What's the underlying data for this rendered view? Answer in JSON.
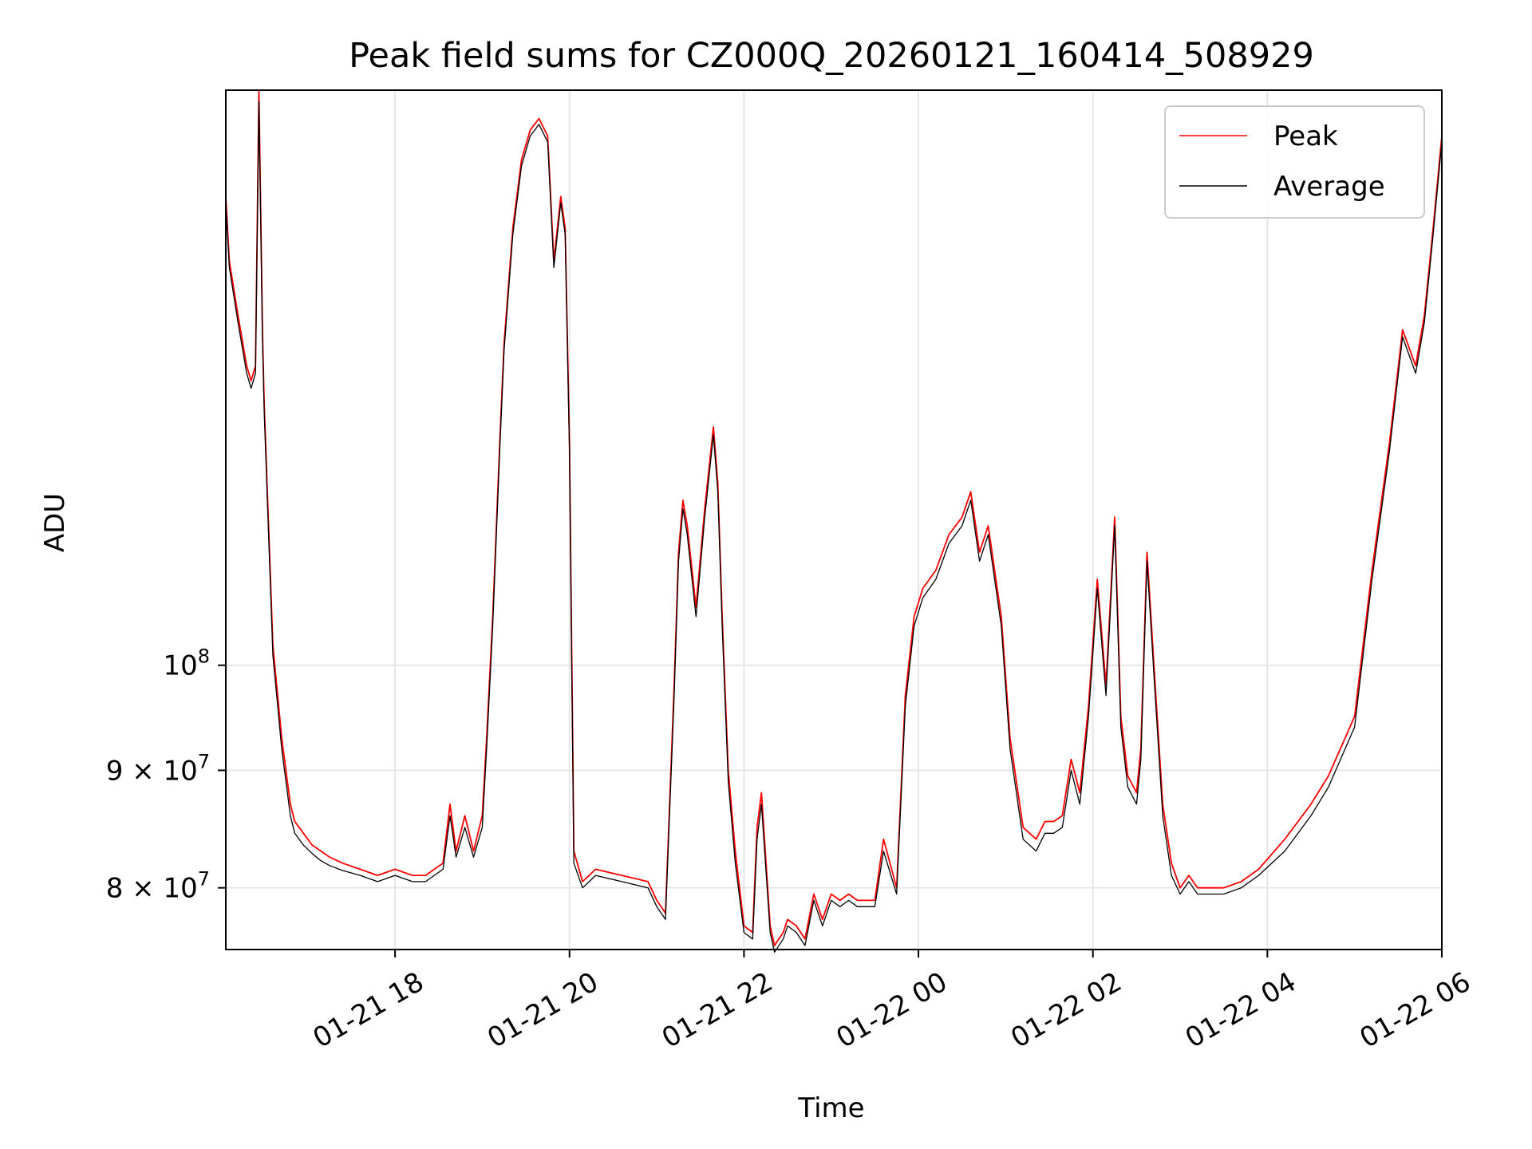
{
  "chart_data": {
    "type": "line",
    "title": "Peak field sums for CZ000Q_20260121_160414_508929",
    "xlabel": "Time",
    "ylabel": "ADU",
    "yscale": "log",
    "xlim": [
      -1.94,
      12.0
    ],
    "ylim": [
      75200000.0,
      178000000.0
    ],
    "grid": true,
    "legend_position": "top-right",
    "x_unit": "hours relative to 2026-01-21 18:00",
    "x_ticks": [
      {
        "value": 0,
        "label": "01-21 18"
      },
      {
        "value": 2,
        "label": "01-21 20"
      },
      {
        "value": 4,
        "label": "01-21 22"
      },
      {
        "value": 6,
        "label": "01-22 00"
      },
      {
        "value": 8,
        "label": "01-22 02"
      },
      {
        "value": 10,
        "label": "01-22 04"
      },
      {
        "value": 12,
        "label": "01-22 06"
      }
    ],
    "y_ticks": [
      {
        "value": 80000000.0,
        "mantissa": "8",
        "base": "10",
        "exp": "7"
      },
      {
        "value": 90000000.0,
        "mantissa": "9",
        "base": "10",
        "exp": "7"
      },
      {
        "value": 100000000.0,
        "mantissa": "",
        "base": "10",
        "exp": "8"
      }
    ],
    "series": [
      {
        "name": "Peak",
        "color": "#ff0000",
        "x": [
          -1.94,
          -1.9,
          -1.8,
          -1.7,
          -1.65,
          -1.6,
          -1.56,
          -1.52,
          -1.5,
          -1.45,
          -1.4,
          -1.3,
          -1.2,
          -1.15,
          -1.05,
          -0.95,
          -0.85,
          -0.75,
          -0.6,
          -0.4,
          -0.2,
          0.0,
          0.2,
          0.35,
          0.55,
          0.63,
          0.7,
          0.8,
          0.9,
          1.0,
          1.05,
          1.12,
          1.2,
          1.25,
          1.35,
          1.45,
          1.55,
          1.65,
          1.75,
          1.82,
          1.9,
          1.95,
          2.0,
          2.05,
          2.15,
          2.3,
          2.6,
          2.9,
          3.0,
          3.1,
          3.2,
          3.25,
          3.3,
          3.35,
          3.45,
          3.55,
          3.65,
          3.7,
          3.75,
          3.82,
          3.9,
          4.0,
          4.1,
          4.15,
          4.2,
          4.3,
          4.35,
          4.45,
          4.5,
          4.6,
          4.7,
          4.8,
          4.9,
          5.0,
          5.1,
          5.2,
          5.3,
          5.5,
          5.6,
          5.75,
          5.85,
          5.95,
          6.05,
          6.2,
          6.35,
          6.5,
          6.6,
          6.7,
          6.8,
          6.95,
          7.05,
          7.2,
          7.35,
          7.45,
          7.55,
          7.65,
          7.75,
          7.85,
          7.95,
          8.05,
          8.15,
          8.25,
          8.32,
          8.4,
          8.5,
          8.55,
          8.62,
          8.7,
          8.8,
          8.9,
          9.0,
          9.1,
          9.2,
          9.35,
          9.5,
          9.7,
          9.9,
          10.2,
          10.5,
          10.7,
          11.0,
          11.2,
          11.4,
          11.55,
          11.7,
          11.8,
          11.9,
          12.0
        ],
        "values": [
          160000000.0,
          150000000.0,
          142000000.0,
          135000000.0,
          133000000.0,
          135000000.0,
          178000000.0,
          140000000.0,
          130000000.0,
          115000000.0,
          102000000.0,
          93000000.0,
          87000000.0,
          85500000.0,
          84500000.0,
          83500000.0,
          83000000.0,
          82500000.0,
          82000000.0,
          81500000.0,
          81000000.0,
          81500000.0,
          81000000.0,
          81000000.0,
          82000000.0,
          87000000.0,
          83000000.0,
          86000000.0,
          83000000.0,
          86000000.0,
          93000000.0,
          105000000.0,
          125000000.0,
          138000000.0,
          155000000.0,
          166000000.0,
          171000000.0,
          173000000.0,
          170000000.0,
          150000000.0,
          160000000.0,
          155000000.0,
          125000000.0,
          83000000.0,
          80500000.0,
          81500000.0,
          81000000.0,
          80500000.0,
          79000000.0,
          78000000.0,
          98000000.0,
          112000000.0,
          118000000.0,
          115000000.0,
          106000000.0,
          117000000.0,
          127000000.0,
          120000000.0,
          105000000.0,
          90000000.0,
          83000000.0,
          77000000.0,
          76500000.0,
          85000000.0,
          88000000.0,
          77000000.0,
          75500000.0,
          76500000.0,
          77500000.0,
          77000000.0,
          76000000.0,
          79500000.0,
          77500000.0,
          79500000.0,
          79000000.0,
          79500000.0,
          79000000.0,
          79000000.0,
          84000000.0,
          80000000.0,
          97000000.0,
          105000000.0,
          108000000.0,
          110000000.0,
          114000000.0,
          116000000.0,
          119000000.0,
          112000000.0,
          115000000.0,
          105000000.0,
          93000000.0,
          85000000.0,
          84000000.0,
          85500000.0,
          85500000.0,
          86000000.0,
          91000000.0,
          88000000.0,
          96000000.0,
          109000000.0,
          98000000.0,
          116000000.0,
          95000000.0,
          89500000.0,
          88000000.0,
          92000000.0,
          112000000.0,
          100000000.0,
          87000000.0,
          82000000.0,
          80000000.0,
          81000000.0,
          80000000.0,
          80000000.0,
          80000000.0,
          80500000.0,
          81500000.0,
          84000000.0,
          87000000.0,
          89500000.0,
          95000000.0,
          110000000.0,
          125000000.0,
          140000000.0,
          135000000.0,
          142000000.0,
          155000000.0,
          170000000.0
        ]
      },
      {
        "name": "Average",
        "color": "#000000",
        "x": [
          -1.94,
          -1.9,
          -1.8,
          -1.7,
          -1.65,
          -1.6,
          -1.56,
          -1.52,
          -1.5,
          -1.45,
          -1.4,
          -1.3,
          -1.2,
          -1.15,
          -1.05,
          -0.95,
          -0.85,
          -0.75,
          -0.6,
          -0.4,
          -0.2,
          0.0,
          0.2,
          0.35,
          0.55,
          0.63,
          0.7,
          0.8,
          0.9,
          1.0,
          1.05,
          1.12,
          1.2,
          1.25,
          1.35,
          1.45,
          1.55,
          1.65,
          1.75,
          1.82,
          1.9,
          1.95,
          2.0,
          2.05,
          2.15,
          2.3,
          2.6,
          2.9,
          3.0,
          3.1,
          3.2,
          3.25,
          3.3,
          3.35,
          3.45,
          3.55,
          3.65,
          3.7,
          3.75,
          3.82,
          3.9,
          4.0,
          4.1,
          4.15,
          4.2,
          4.3,
          4.35,
          4.45,
          4.5,
          4.6,
          4.7,
          4.8,
          4.9,
          5.0,
          5.1,
          5.2,
          5.3,
          5.5,
          5.6,
          5.75,
          5.85,
          5.95,
          6.05,
          6.2,
          6.35,
          6.5,
          6.6,
          6.7,
          6.8,
          6.95,
          7.05,
          7.2,
          7.35,
          7.45,
          7.55,
          7.65,
          7.75,
          7.85,
          7.95,
          8.05,
          8.15,
          8.25,
          8.32,
          8.4,
          8.5,
          8.55,
          8.62,
          8.7,
          8.8,
          8.9,
          9.0,
          9.1,
          9.2,
          9.35,
          9.5,
          9.7,
          9.9,
          10.2,
          10.5,
          10.7,
          11.0,
          11.2,
          11.4,
          11.55,
          11.7,
          11.8,
          11.9,
          12.0
        ],
        "values": [
          159000000.0,
          149000000.0,
          141000000.0,
          134000000.0,
          132000000.0,
          134000000.0,
          176000000.0,
          139000000.0,
          129000000.0,
          114000000.0,
          101000000.0,
          92000000.0,
          86000000.0,
          84500000.0,
          83500000.0,
          82800000.0,
          82200000.0,
          81800000.0,
          81400000.0,
          81000000.0,
          80500000.0,
          81000000.0,
          80500000.0,
          80500000.0,
          81500000.0,
          86000000.0,
          82500000.0,
          85000000.0,
          82500000.0,
          85000000.0,
          92000000.0,
          104000000.0,
          124000000.0,
          137000000.0,
          154000000.0,
          165000000.0,
          170000000.0,
          172000000.0,
          169000000.0,
          149000000.0,
          159000000.0,
          154000000.0,
          124000000.0,
          82000000.0,
          80000000.0,
          81000000.0,
          80500000.0,
          80000000.0,
          78500000.0,
          77500000.0,
          97000000.0,
          111000000.0,
          117000000.0,
          114000000.0,
          105000000.0,
          116000000.0,
          126000000.0,
          119000000.0,
          104000000.0,
          89000000.0,
          82000000.0,
          76500000.0,
          76000000.0,
          84000000.0,
          87000000.0,
          76500000.0,
          75000000.0,
          76000000.0,
          77000000.0,
          76500000.0,
          75500000.0,
          79000000.0,
          77000000.0,
          79000000.0,
          78500000.0,
          79000000.0,
          78500000.0,
          78500000.0,
          83000000.0,
          79500000.0,
          96000000.0,
          104000000.0,
          107000000.0,
          109000000.0,
          113000000.0,
          115000000.0,
          118000000.0,
          111000000.0,
          114000000.0,
          104000000.0,
          92000000.0,
          84000000.0,
          83000000.0,
          84500000.0,
          84500000.0,
          85000000.0,
          90000000.0,
          87000000.0,
          95000000.0,
          108000000.0,
          97000000.0,
          115000000.0,
          94000000.0,
          88500000.0,
          87000000.0,
          91000000.0,
          111000000.0,
          99000000.0,
          86000000.0,
          81000000.0,
          79500000.0,
          80500000.0,
          79500000.0,
          79500000.0,
          79500000.0,
          80000000.0,
          81000000.0,
          83000000.0,
          86000000.0,
          88500000.0,
          94000000.0,
          109000000.0,
          124000000.0,
          139000000.0,
          134000000.0,
          141000000.0,
          154000000.0,
          169000000.0
        ]
      }
    ]
  }
}
